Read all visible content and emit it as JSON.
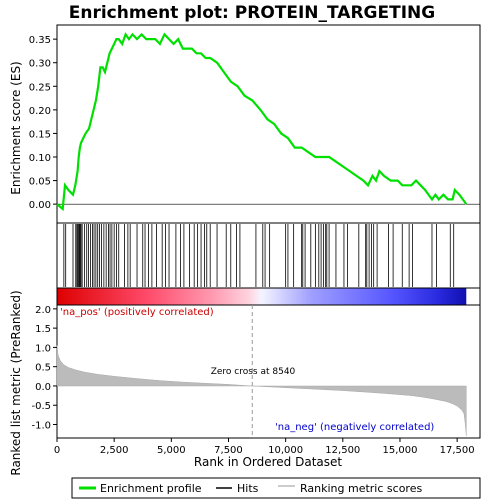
{
  "chart_data": {
    "type": "line",
    "title": "Enrichment plot: PROTEIN_TARGETING",
    "top_panel": {
      "ylabel": "Enrichment score (ES)",
      "ylim": [
        -0.04,
        0.38
      ],
      "yticks": [
        "0.00",
        "0.05",
        "0.10",
        "0.15",
        "0.20",
        "0.25",
        "0.30",
        "0.35"
      ],
      "ytick_values": [
        0.0,
        0.05,
        0.1,
        0.15,
        0.2,
        0.25,
        0.3,
        0.35
      ],
      "series": [
        {
          "name": "Enrichment profile",
          "color": "#00e000",
          "x": [
            0,
            250,
            350,
            500,
            700,
            800,
            900,
            950,
            1000,
            1050,
            1150,
            1250,
            1400,
            1500,
            1600,
            1700,
            1800,
            1900,
            2000,
            2100,
            2200,
            2300,
            2400,
            2500,
            2600,
            2700,
            2850,
            3000,
            3150,
            3300,
            3500,
            3700,
            3900,
            4100,
            4300,
            4500,
            4700,
            4900,
            5100,
            5300,
            5500,
            5700,
            5900,
            6100,
            6300,
            6500,
            6700,
            7000,
            7300,
            7600,
            7900,
            8200,
            8540,
            8900,
            9200,
            9500,
            9800,
            10100,
            10400,
            10700,
            11000,
            11300,
            11600,
            11900,
            12200,
            12500,
            12800,
            13100,
            13400,
            13600,
            13800,
            13950,
            14100,
            14300,
            14600,
            14900,
            15100,
            15300,
            15500,
            15700,
            15900,
            16100,
            16400,
            16550,
            16700,
            16900,
            17100,
            17300,
            17400,
            17600,
            17900
          ],
          "y": [
            0.0,
            -0.01,
            0.04,
            0.03,
            0.02,
            0.04,
            0.07,
            0.1,
            0.12,
            0.13,
            0.14,
            0.15,
            0.16,
            0.18,
            0.2,
            0.22,
            0.25,
            0.29,
            0.29,
            0.28,
            0.3,
            0.32,
            0.33,
            0.34,
            0.35,
            0.35,
            0.34,
            0.36,
            0.35,
            0.36,
            0.35,
            0.36,
            0.35,
            0.35,
            0.35,
            0.34,
            0.36,
            0.35,
            0.34,
            0.35,
            0.33,
            0.33,
            0.33,
            0.32,
            0.32,
            0.31,
            0.31,
            0.3,
            0.28,
            0.26,
            0.25,
            0.23,
            0.22,
            0.2,
            0.18,
            0.17,
            0.15,
            0.14,
            0.12,
            0.12,
            0.11,
            0.1,
            0.1,
            0.1,
            0.09,
            0.08,
            0.07,
            0.06,
            0.05,
            0.04,
            0.06,
            0.05,
            0.07,
            0.06,
            0.05,
            0.05,
            0.04,
            0.04,
            0.04,
            0.05,
            0.04,
            0.03,
            0.01,
            0.02,
            0.01,
            0.02,
            0.01,
            0.01,
            0.03,
            0.02,
            0.0
          ]
        }
      ]
    },
    "hits_x": [
      300,
      380,
      700,
      820,
      870,
      910,
      950,
      980,
      1010,
      1050,
      1100,
      1200,
      1300,
      1380,
      1470,
      1550,
      1620,
      1700,
      1780,
      1860,
      1950,
      2050,
      2150,
      2250,
      2320,
      2400,
      2500,
      2600,
      2700,
      2950,
      3100,
      3200,
      3500,
      3750,
      3850,
      4000,
      4150,
      4350,
      4600,
      4750,
      4900,
      5200,
      5400,
      5550,
      5800,
      6000,
      6150,
      6300,
      6450,
      6550,
      6700,
      7000,
      7400,
      7600,
      7850,
      8000,
      8700,
      9000,
      9100,
      9300,
      10000,
      10100,
      10350,
      10700,
      10750,
      10850,
      11100,
      11300,
      11450,
      11550,
      11650,
      11750,
      11800,
      11900,
      12200,
      12550,
      12700,
      13200,
      13500,
      13550,
      13650,
      13750,
      13850,
      14000,
      14500,
      14700,
      15100,
      15400,
      15550,
      16400,
      16600,
      17200,
      17350
    ],
    "metric": {
      "ylabel": "Ranked list metric (PreRanked)",
      "ylim": [
        -1.35,
        2.1
      ],
      "yticks": [
        "2.0",
        "1.5",
        "1.0",
        "0.5",
        "0.0",
        "-0.5",
        "-1.0"
      ],
      "ytick_values": [
        2.0,
        1.5,
        1.0,
        0.5,
        0.0,
        -0.5,
        -1.0
      ],
      "x": [
        0,
        50,
        150,
        300,
        500,
        800,
        1200,
        1800,
        2500,
        3500,
        4500,
        5500,
        6500,
        7500,
        8540,
        9500,
        10500,
        11500,
        12500,
        13500,
        14500,
        15500,
        16000,
        16500,
        17000,
        17300,
        17500,
        17700,
        17800,
        17850,
        17900
      ],
      "y": [
        1.05,
        0.8,
        0.65,
        0.55,
        0.48,
        0.42,
        0.36,
        0.3,
        0.25,
        0.19,
        0.14,
        0.1,
        0.07,
        0.04,
        0.0,
        -0.03,
        -0.06,
        -0.09,
        -0.12,
        -0.16,
        -0.2,
        -0.25,
        -0.29,
        -0.34,
        -0.4,
        -0.46,
        -0.52,
        -0.62,
        -0.72,
        -0.95,
        -1.3
      ]
    },
    "xlabel": "Rank in Ordered Dataset",
    "xlim": [
      0,
      18500
    ],
    "xticks": [
      "0",
      "2,500",
      "5,000",
      "7,500",
      "10,000",
      "12,500",
      "15,000",
      "17,500"
    ],
    "xtick_values": [
      0,
      2500,
      5000,
      7500,
      10000,
      12500,
      15000,
      17500
    ],
    "zero_cross_label": "Zero cross at 8540",
    "zero_cross": 8540,
    "na_pos_label": "'na_pos' (positively correlated)",
    "na_neg_label": "'na_neg' (negatively correlated)",
    "legend": {
      "placement": "bottom",
      "items": [
        {
          "label": "Enrichment profile",
          "color": "#00e000"
        },
        {
          "label": "Hits",
          "color": "#000000"
        },
        {
          "label": "Ranking metric scores",
          "color": "#bbbbbb"
        }
      ]
    },
    "colors": {
      "profile": "#00e000",
      "metric_fill": "#bbbbbb",
      "na_pos_text": "#cc0000",
      "na_neg_text": "#0000cc",
      "zero_line": "#999999"
    }
  }
}
